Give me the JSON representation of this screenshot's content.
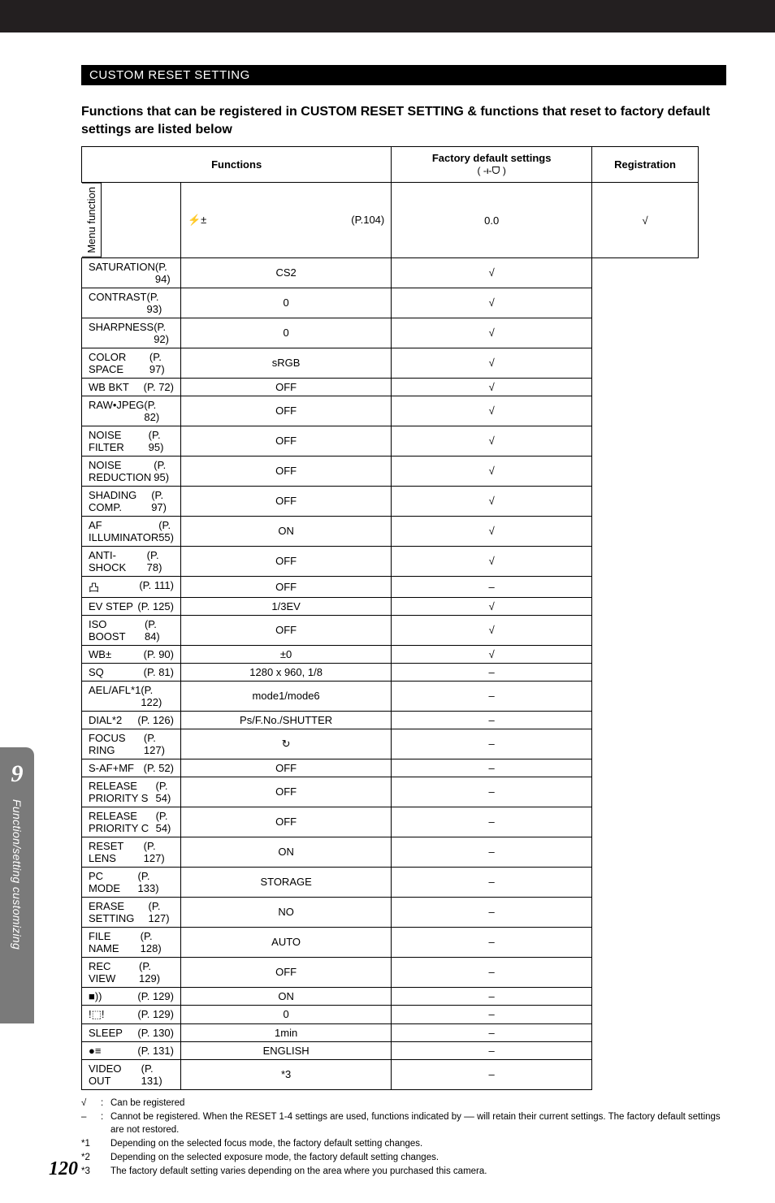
{
  "section_header": "CUSTOM RESET SETTING",
  "subtitle": "Functions that can be registered in CUSTOM RESET SETTING & functions that reset to factory default settings are listed below",
  "headers": {
    "functions": "Functions",
    "default": "Factory default settings",
    "default_sub": "( -ᵼ-ᗜ )",
    "registration": "Registration"
  },
  "side_label": "Menu function",
  "rows": [
    {
      "name": "⚡±",
      "page": "(P.104)",
      "default": "0.0",
      "reg": "√"
    },
    {
      "name": "SATURATION",
      "page": "(P. 94)",
      "default": "CS2",
      "reg": "√"
    },
    {
      "name": "CONTRAST",
      "page": "(P. 93)",
      "default": "0",
      "reg": "√"
    },
    {
      "name": "SHARPNESS",
      "page": "(P. 92)",
      "default": "0",
      "reg": "√"
    },
    {
      "name": "COLOR SPACE",
      "page": "(P. 97)",
      "default": "sRGB",
      "reg": "√"
    },
    {
      "name": "WB BKT",
      "page": "(P. 72)",
      "default": "OFF",
      "reg": "√"
    },
    {
      "name": "RAW•JPEG",
      "page": "(P. 82)",
      "default": "OFF",
      "reg": "√"
    },
    {
      "name": "NOISE FILTER",
      "page": "(P. 95)",
      "default": "OFF",
      "reg": "√"
    },
    {
      "name": "NOISE REDUCTION",
      "page": "(P. 95)",
      "default": "OFF",
      "reg": "√"
    },
    {
      "name": "SHADING COMP.",
      "page": "(P. 97)",
      "default": "OFF",
      "reg": "√"
    },
    {
      "name": "AF ILLUMINATOR",
      "page": "(P. 55)",
      "default": "ON",
      "reg": "√"
    },
    {
      "name": "ANTI-SHOCK",
      "page": "(P. 78)",
      "default": "OFF",
      "reg": "√"
    },
    {
      "name": "凸",
      "page": "(P. 111)",
      "default": "OFF",
      "reg": "–"
    },
    {
      "name": "EV STEP",
      "page": "(P. 125)",
      "default": "1/3EV",
      "reg": "√"
    },
    {
      "name": "ISO BOOST",
      "page": "(P. 84)",
      "default": "OFF",
      "reg": "√"
    },
    {
      "name": "WB±",
      "page": "(P. 90)",
      "default": "±0",
      "reg": "√"
    },
    {
      "name": "SQ",
      "page": "(P. 81)",
      "default": "1280 x 960, 1/8",
      "reg": "–"
    },
    {
      "name": "AEL/AFL*1",
      "page": "(P. 122)",
      "default": "mode1/mode6",
      "reg": "–"
    },
    {
      "name": "DIAL*2",
      "page": "(P. 126)",
      "default": "Ps/F.No./SHUTTER",
      "reg": "–"
    },
    {
      "name": "FOCUS RING",
      "page": "(P. 127)",
      "default": "↻",
      "reg": "–"
    },
    {
      "name": "S-AF+MF",
      "page": "(P. 52)",
      "default": "OFF",
      "reg": "–"
    },
    {
      "name": "RELEASE PRIORITY S",
      "page": "(P. 54)",
      "default": "OFF",
      "reg": "–"
    },
    {
      "name": "RELEASE PRIORITY C",
      "page": "(P. 54)",
      "default": "OFF",
      "reg": "–"
    },
    {
      "name": "RESET LENS",
      "page": "(P. 127)",
      "default": "ON",
      "reg": "–"
    },
    {
      "name": "PC MODE",
      "page": "(P. 133)",
      "default": "STORAGE",
      "reg": "–"
    },
    {
      "name": "ERASE SETTING",
      "page": "(P. 127)",
      "default": "NO",
      "reg": "–"
    },
    {
      "name": "FILE NAME",
      "page": "(P. 128)",
      "default": "AUTO",
      "reg": "–"
    },
    {
      "name": "REC VIEW",
      "page": "(P. 129)",
      "default": "OFF",
      "reg": "–"
    },
    {
      "name": "■))",
      "page": "(P. 129)",
      "default": "ON",
      "reg": "–"
    },
    {
      "name": "!⬚!",
      "page": "(P. 129)",
      "default": "0",
      "reg": "–"
    },
    {
      "name": "SLEEP",
      "page": "(P. 130)",
      "default": "1min",
      "reg": "–"
    },
    {
      "name": "●≡",
      "page": "(P. 131)",
      "default": "ENGLISH",
      "reg": "–"
    },
    {
      "name": "VIDEO OUT",
      "page": "(P. 131)",
      "default": "*3",
      "reg": "–"
    }
  ],
  "footnotes": [
    {
      "mark": "√",
      "colon": ":",
      "text": "Can be registered"
    },
    {
      "mark": "–",
      "colon": ":",
      "text": "Cannot be registered. When the RESET 1-4 settings are used, functions indicated by –– will retain their current settings. The factory default settings are not restored."
    },
    {
      "mark": "*1",
      "colon": "",
      "text": "Depending on the selected focus mode, the factory default setting changes."
    },
    {
      "mark": "*2",
      "colon": "",
      "text": "Depending on the selected exposure mode, the factory default setting changes."
    },
    {
      "mark": "*3",
      "colon": "",
      "text": "The factory default setting varies depending on the area where you purchased this camera."
    }
  ],
  "left_tab": {
    "number": "9",
    "title": "Function/setting customizing"
  },
  "page_number": "120"
}
